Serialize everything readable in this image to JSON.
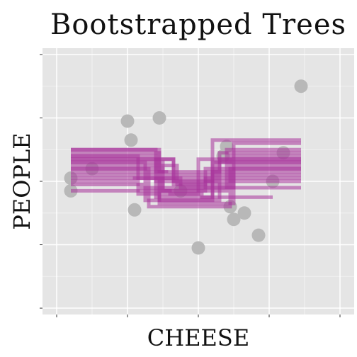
{
  "chart_data": {
    "type": "scatter",
    "title": "Bootstrapped Trees",
    "xlabel": "CHEESE",
    "ylabel": "PEOPLE",
    "xlim": [
      -2.2,
      2.2
    ],
    "ylim": [
      -2.1,
      2.1
    ],
    "x_ticks": [
      -2,
      -1,
      0,
      1,
      2
    ],
    "y_ticks": [
      -2,
      -1,
      0,
      1,
      2
    ],
    "tick_labels_shown": false,
    "grid": true,
    "panel_background": "#e5e5e5",
    "point_color": "#b8b8b8",
    "tree_color": "#a8339a",
    "points": [
      {
        "x": -1.8,
        "y": 0.05
      },
      {
        "x": -1.8,
        "y": -0.15
      },
      {
        "x": -1.5,
        "y": 0.2
      },
      {
        "x": -1.0,
        "y": 0.95
      },
      {
        "x": -0.95,
        "y": 0.65
      },
      {
        "x": -0.9,
        "y": -0.45
      },
      {
        "x": -0.55,
        "y": 1.0
      },
      {
        "x": -0.25,
        "y": -0.15
      },
      {
        "x": 0.0,
        "y": -1.05
      },
      {
        "x": 0.35,
        "y": 0.4
      },
      {
        "x": 0.4,
        "y": 0.55
      },
      {
        "x": 0.45,
        "y": -0.4
      },
      {
        "x": 0.5,
        "y": -0.6
      },
      {
        "x": 0.65,
        "y": -0.5
      },
      {
        "x": 0.85,
        "y": -0.85
      },
      {
        "x": 1.05,
        "y": 0.0
      },
      {
        "x": 1.2,
        "y": 0.45
      },
      {
        "x": 1.45,
        "y": 1.5
      }
    ],
    "trees": [
      {
        "x": [
          -1.8,
          -0.6,
          -0.6,
          0.2,
          0.2,
          1.45
        ],
        "y": [
          0.5,
          0.5,
          0.0,
          0.0,
          0.65,
          0.65
        ]
      },
      {
        "x": [
          -1.8,
          -0.55,
          -0.55,
          0.3,
          0.3,
          1.45
        ],
        "y": [
          0.45,
          0.45,
          -0.3,
          -0.3,
          0.35,
          0.35
        ]
      },
      {
        "x": [
          -1.8,
          -0.85,
          -0.85,
          0.0,
          0.0,
          1.45
        ],
        "y": [
          0.4,
          0.4,
          -0.2,
          -0.2,
          0.1,
          0.1
        ]
      },
      {
        "x": [
          -1.8,
          -0.35,
          -0.35,
          0.25,
          0.25,
          1.45
        ],
        "y": [
          0.35,
          0.35,
          0.0,
          0.0,
          0.3,
          0.3
        ]
      },
      {
        "x": [
          -1.8,
          -0.5,
          -0.5,
          0.4,
          0.4,
          1.45
        ],
        "y": [
          0.3,
          0.3,
          -0.15,
          -0.15,
          0.5,
          0.5
        ]
      },
      {
        "x": [
          -1.8,
          -0.3,
          -0.3,
          0.1,
          0.1,
          1.45
        ],
        "y": [
          0.25,
          0.25,
          -0.05,
          -0.05,
          0.2,
          0.2
        ]
      },
      {
        "x": [
          -1.8,
          -0.7,
          -0.7,
          0.45,
          0.45,
          1.45
        ],
        "y": [
          0.2,
          0.2,
          -0.4,
          -0.4,
          0.4,
          0.4
        ]
      },
      {
        "x": [
          -1.8,
          -0.45,
          -0.45,
          0.0,
          0.0,
          1.45
        ],
        "y": [
          0.15,
          0.15,
          0.1,
          0.1,
          0.35,
          0.35
        ]
      },
      {
        "x": [
          -1.8,
          -0.6,
          -0.6,
          0.2,
          0.2,
          1.45
        ],
        "y": [
          0.1,
          0.1,
          -0.25,
          -0.25,
          0.15,
          0.15
        ]
      },
      {
        "x": [
          -1.8,
          -0.25,
          -0.25,
          0.5,
          0.5,
          1.45
        ],
        "y": [
          0.05,
          0.05,
          -0.1,
          -0.1,
          0.25,
          0.25
        ]
      },
      {
        "x": [
          -1.8,
          -0.9,
          -0.9,
          0.15,
          0.15,
          1.45
        ],
        "y": [
          0.0,
          0.0,
          0.05,
          0.05,
          0.0,
          0.0
        ]
      },
      {
        "x": [
          -1.8,
          -0.8,
          -0.8,
          0.35,
          0.35,
          1.45
        ],
        "y": [
          -0.05,
          -0.05,
          -0.1,
          -0.1,
          -0.1,
          -0.1
        ]
      },
      {
        "x": [
          -1.8,
          -0.4,
          -0.4,
          0.05,
          0.05,
          1.05
        ],
        "y": [
          -0.15,
          -0.15,
          -0.2,
          -0.2,
          -0.25,
          -0.25
        ]
      },
      {
        "x": [
          -1.8,
          -0.55,
          -0.55,
          0.5,
          0.5,
          1.45
        ],
        "y": [
          0.5,
          0.5,
          -0.35,
          -0.35,
          0.6,
          0.6
        ]
      },
      {
        "x": [
          -1.8,
          -0.6,
          -0.6,
          0.3,
          0.3,
          1.45
        ],
        "y": [
          0.4,
          0.4,
          0.15,
          0.15,
          0.45,
          0.45
        ]
      },
      {
        "x": [
          -1.8,
          -0.35,
          -0.35,
          0.45,
          0.45,
          1.45
        ],
        "y": [
          0.35,
          0.35,
          -0.05,
          -0.05,
          0.2,
          0.2
        ]
      },
      {
        "x": [
          -1.8,
          -0.75,
          -0.75,
          0.2,
          0.2,
          1.45
        ],
        "y": [
          0.3,
          0.3,
          -0.3,
          -0.3,
          0.3,
          0.3
        ]
      },
      {
        "x": [
          -1.8,
          -0.5,
          -0.5,
          0.1,
          0.1,
          1.45
        ],
        "y": [
          0.2,
          0.2,
          -0.15,
          -0.15,
          0.05,
          0.05
        ]
      }
    ]
  }
}
